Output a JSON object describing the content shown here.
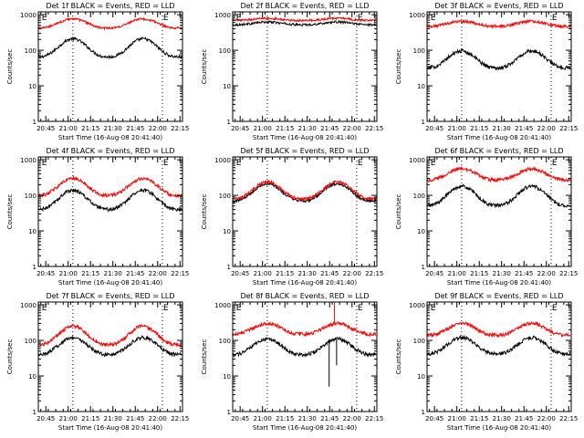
{
  "colors": {
    "events": "#000000",
    "lld": "#ff0000",
    "axis": "#000000",
    "background": "#ffffff"
  },
  "chart_data": [
    {
      "type": "line",
      "title": "Det 1f BLACK = Events, RED = LLD",
      "xlabel": "Start Time (16-Aug-08 20:41:40)",
      "ylabel": "Counts/sec",
      "yscale": "log",
      "ylim": [
        1,
        1200
      ],
      "xlim_minutes": [
        -1.67,
        95
      ],
      "xticks": [
        "20:45",
        "21:00",
        "21:15",
        "21:30",
        "21:45",
        "22:00",
        "22:15"
      ],
      "yticks": [
        "1",
        "10",
        "100",
        "1000"
      ],
      "markers": [
        {
          "x_minutes": 21.5,
          "style": "dotted"
        },
        {
          "x_minutes": 81.5,
          "style": "dotted"
        }
      ],
      "flags": [
        {
          "x_minutes": 0,
          "label": "E"
        },
        {
          "x_minutes": 81.5,
          "label": "E"
        }
      ],
      "series": [
        {
          "name": "BLACK = Events",
          "baseline": 65,
          "peak": 210,
          "noise": 0.04
        },
        {
          "name": "RED = LLD",
          "baseline": 420,
          "peak": 760,
          "noise": 0.03
        }
      ]
    },
    {
      "type": "line",
      "title": "Det 2f BLACK = Events, RED = LLD",
      "xlabel": "Start Time (16-Aug-08 20:41:40)",
      "ylabel": "Counts/sec",
      "yscale": "log",
      "ylim": [
        1,
        1200
      ],
      "xlim_minutes": [
        -1.67,
        95
      ],
      "xticks": [
        "20:45",
        "21:00",
        "21:15",
        "21:30",
        "21:45",
        "22:00",
        "22:15"
      ],
      "yticks": [
        "1",
        "10",
        "100",
        "1000"
      ],
      "markers": [
        {
          "x_minutes": 21.5,
          "style": "dotted"
        },
        {
          "x_minutes": 81.5,
          "style": "dotted"
        }
      ],
      "flags": [
        {
          "x_minutes": 0,
          "label": "E"
        },
        {
          "x_minutes": 81.5,
          "label": "E"
        }
      ],
      "series": [
        {
          "name": "BLACK = Events",
          "baseline": 520,
          "peak": 620,
          "noise": 0.03
        },
        {
          "name": "RED = LLD",
          "baseline": 680,
          "peak": 790,
          "noise": 0.03
        }
      ]
    },
    {
      "type": "line",
      "title": "Det 3f BLACK = Events, RED = LLD",
      "xlabel": "Start Time (16-Aug-08 20:41:40)",
      "ylabel": "Counts/sec",
      "yscale": "log",
      "ylim": [
        1,
        1200
      ],
      "xlim_minutes": [
        -1.67,
        95
      ],
      "xticks": [
        "20:45",
        "21:00",
        "21:15",
        "21:30",
        "21:45",
        "22:00",
        "22:15"
      ],
      "yticks": [
        "1",
        "10",
        "100",
        "1000"
      ],
      "markers": [
        {
          "x_minutes": 21.5,
          "style": "dotted"
        },
        {
          "x_minutes": 81.5,
          "style": "dotted"
        }
      ],
      "flags": [
        {
          "x_minutes": 0,
          "label": "E"
        },
        {
          "x_minutes": 81.5,
          "label": "E"
        }
      ],
      "series": [
        {
          "name": "BLACK = Events",
          "baseline": 32,
          "peak": 95,
          "noise": 0.05
        },
        {
          "name": "RED = LLD",
          "baseline": 470,
          "peak": 650,
          "noise": 0.04
        }
      ]
    },
    {
      "type": "line",
      "title": "Det 4f BLACK = Events, RED = LLD",
      "xlabel": "Start Time (16-Aug-08 20:41:40)",
      "ylabel": "Counts/sec",
      "yscale": "log",
      "ylim": [
        1,
        1200
      ],
      "xlim_minutes": [
        -1.67,
        95
      ],
      "xticks": [
        "20:45",
        "21:00",
        "21:15",
        "21:30",
        "21:45",
        "22:00",
        "22:15"
      ],
      "yticks": [
        "1",
        "10",
        "100",
        "1000"
      ],
      "markers": [
        {
          "x_minutes": 21.5,
          "style": "dotted"
        },
        {
          "x_minutes": 81.5,
          "style": "dotted"
        }
      ],
      "flags": [
        {
          "x_minutes": 0,
          "label": "E"
        },
        {
          "x_minutes": 81.5,
          "label": "E"
        }
      ],
      "series": [
        {
          "name": "BLACK = Events",
          "baseline": 40,
          "peak": 140,
          "noise": 0.05
        },
        {
          "name": "RED = LLD",
          "baseline": 100,
          "peak": 300,
          "noise": 0.05
        }
      ]
    },
    {
      "type": "line",
      "title": "Det 5f BLACK = Events, RED = LLD",
      "xlabel": "Start Time (16-Aug-08 20:41:40)",
      "ylabel": "Counts/sec",
      "yscale": "log",
      "ylim": [
        1,
        1200
      ],
      "xlim_minutes": [
        -1.67,
        95
      ],
      "xticks": [
        "20:45",
        "21:00",
        "21:15",
        "21:30",
        "21:45",
        "22:00",
        "22:15"
      ],
      "yticks": [
        "1",
        "10",
        "100",
        "1000"
      ],
      "markers": [
        {
          "x_minutes": 21.5,
          "style": "dotted"
        },
        {
          "x_minutes": 81.5,
          "style": "dotted"
        }
      ],
      "flags": [
        {
          "x_minutes": 0,
          "label": "E"
        },
        {
          "x_minutes": 81.5,
          "label": "E"
        }
      ],
      "series": [
        {
          "name": "BLACK = Events",
          "baseline": 70,
          "peak": 210,
          "noise": 0.04
        },
        {
          "name": "RED = LLD",
          "baseline": 80,
          "peak": 240,
          "noise": 0.04
        }
      ]
    },
    {
      "type": "line",
      "title": "Det 6f BLACK = Events, RED = LLD",
      "xlabel": "Start Time (16-Aug-08 20:41:40)",
      "ylabel": "Counts/sec",
      "yscale": "log",
      "ylim": [
        1,
        1200
      ],
      "xlim_minutes": [
        -1.67,
        95
      ],
      "xticks": [
        "20:45",
        "21:00",
        "21:15",
        "21:30",
        "21:45",
        "22:00",
        "22:15"
      ],
      "yticks": [
        "1",
        "10",
        "100",
        "1000"
      ],
      "markers": [
        {
          "x_minutes": 21.5,
          "style": "dotted"
        },
        {
          "x_minutes": 81.5,
          "style": "dotted"
        }
      ],
      "flags": [
        {
          "x_minutes": 0,
          "label": "E"
        },
        {
          "x_minutes": 81.5,
          "label": "E"
        }
      ],
      "series": [
        {
          "name": "BLACK = Events",
          "baseline": 52,
          "peak": 180,
          "noise": 0.05
        },
        {
          "name": "RED = LLD",
          "baseline": 270,
          "peak": 560,
          "noise": 0.05
        }
      ]
    },
    {
      "type": "line",
      "title": "Det 7f BLACK = Events, RED = LLD",
      "xlabel": "Start Time (16-Aug-08 20:41:40)",
      "ylabel": "Counts/sec",
      "yscale": "log",
      "ylim": [
        1,
        1200
      ],
      "xlim_minutes": [
        -1.67,
        95
      ],
      "xticks": [
        "20:45",
        "21:00",
        "21:15",
        "21:30",
        "21:45",
        "22:00",
        "22:15"
      ],
      "yticks": [
        "1",
        "10",
        "100",
        "1000"
      ],
      "markers": [
        {
          "x_minutes": 21.5,
          "style": "dotted"
        },
        {
          "x_minutes": 81.5,
          "style": "dotted"
        }
      ],
      "flags": [
        {
          "x_minutes": 0,
          "label": "E"
        },
        {
          "x_minutes": 81.5,
          "label": "E"
        }
      ],
      "series": [
        {
          "name": "BLACK = Events",
          "baseline": 40,
          "peak": 120,
          "noise": 0.05
        },
        {
          "name": "RED = LLD",
          "baseline": 75,
          "peak": 250,
          "noise": 0.05
        }
      ]
    },
    {
      "type": "line",
      "title": "Det 8f BLACK = Events, RED = LLD",
      "xlabel": "Start Time (16-Aug-08 20:41:40)",
      "ylabel": "Counts/sec",
      "yscale": "log",
      "ylim": [
        1,
        1200
      ],
      "xlim_minutes": [
        -1.67,
        95
      ],
      "xticks": [
        "20:45",
        "21:00",
        "21:15",
        "21:30",
        "21:45",
        "22:00",
        "22:15"
      ],
      "yticks": [
        "1",
        "10",
        "100",
        "1000"
      ],
      "markers": [
        {
          "x_minutes": 21.5,
          "style": "dotted"
        },
        {
          "x_minutes": 81.5,
          "style": "dotted"
        }
      ],
      "flags": [
        {
          "x_minutes": 0,
          "label": "E"
        },
        {
          "x_minutes": 81.5,
          "label": "E"
        }
      ],
      "series": [
        {
          "name": "BLACK = Events",
          "baseline": 40,
          "peak": 110,
          "noise": 0.05
        },
        {
          "name": "RED = LLD",
          "baseline": 150,
          "peak": 300,
          "noise": 0.05
        }
      ],
      "spikes": [
        {
          "series": "RED = LLD",
          "x_minutes": 66.5,
          "to": 1200
        },
        {
          "series": "BLACK = Events",
          "x_minutes": 63,
          "to": 5
        },
        {
          "series": "BLACK = Events",
          "x_minutes": 68,
          "to": 20
        }
      ]
    },
    {
      "type": "line",
      "title": "Det 9f BLACK = Events, RED = LLD",
      "xlabel": "Start Time (16-Aug-08 20:41:40)",
      "ylabel": "Counts/sec",
      "yscale": "log",
      "ylim": [
        1,
        1200
      ],
      "xlim_minutes": [
        -1.67,
        95
      ],
      "xticks": [
        "20:45",
        "21:00",
        "21:15",
        "21:30",
        "21:45",
        "22:00",
        "22:15"
      ],
      "yticks": [
        "1",
        "10",
        "100",
        "1000"
      ],
      "markers": [
        {
          "x_minutes": 21.5,
          "style": "dotted"
        },
        {
          "x_minutes": 81.5,
          "style": "dotted"
        }
      ],
      "flags": [
        {
          "x_minutes": 0,
          "label": "E"
        },
        {
          "x_minutes": 81.5,
          "label": "E"
        }
      ],
      "series": [
        {
          "name": "BLACK = Events",
          "baseline": 42,
          "peak": 120,
          "noise": 0.05
        },
        {
          "name": "RED = LLD",
          "baseline": 140,
          "peak": 300,
          "noise": 0.05
        }
      ]
    }
  ]
}
